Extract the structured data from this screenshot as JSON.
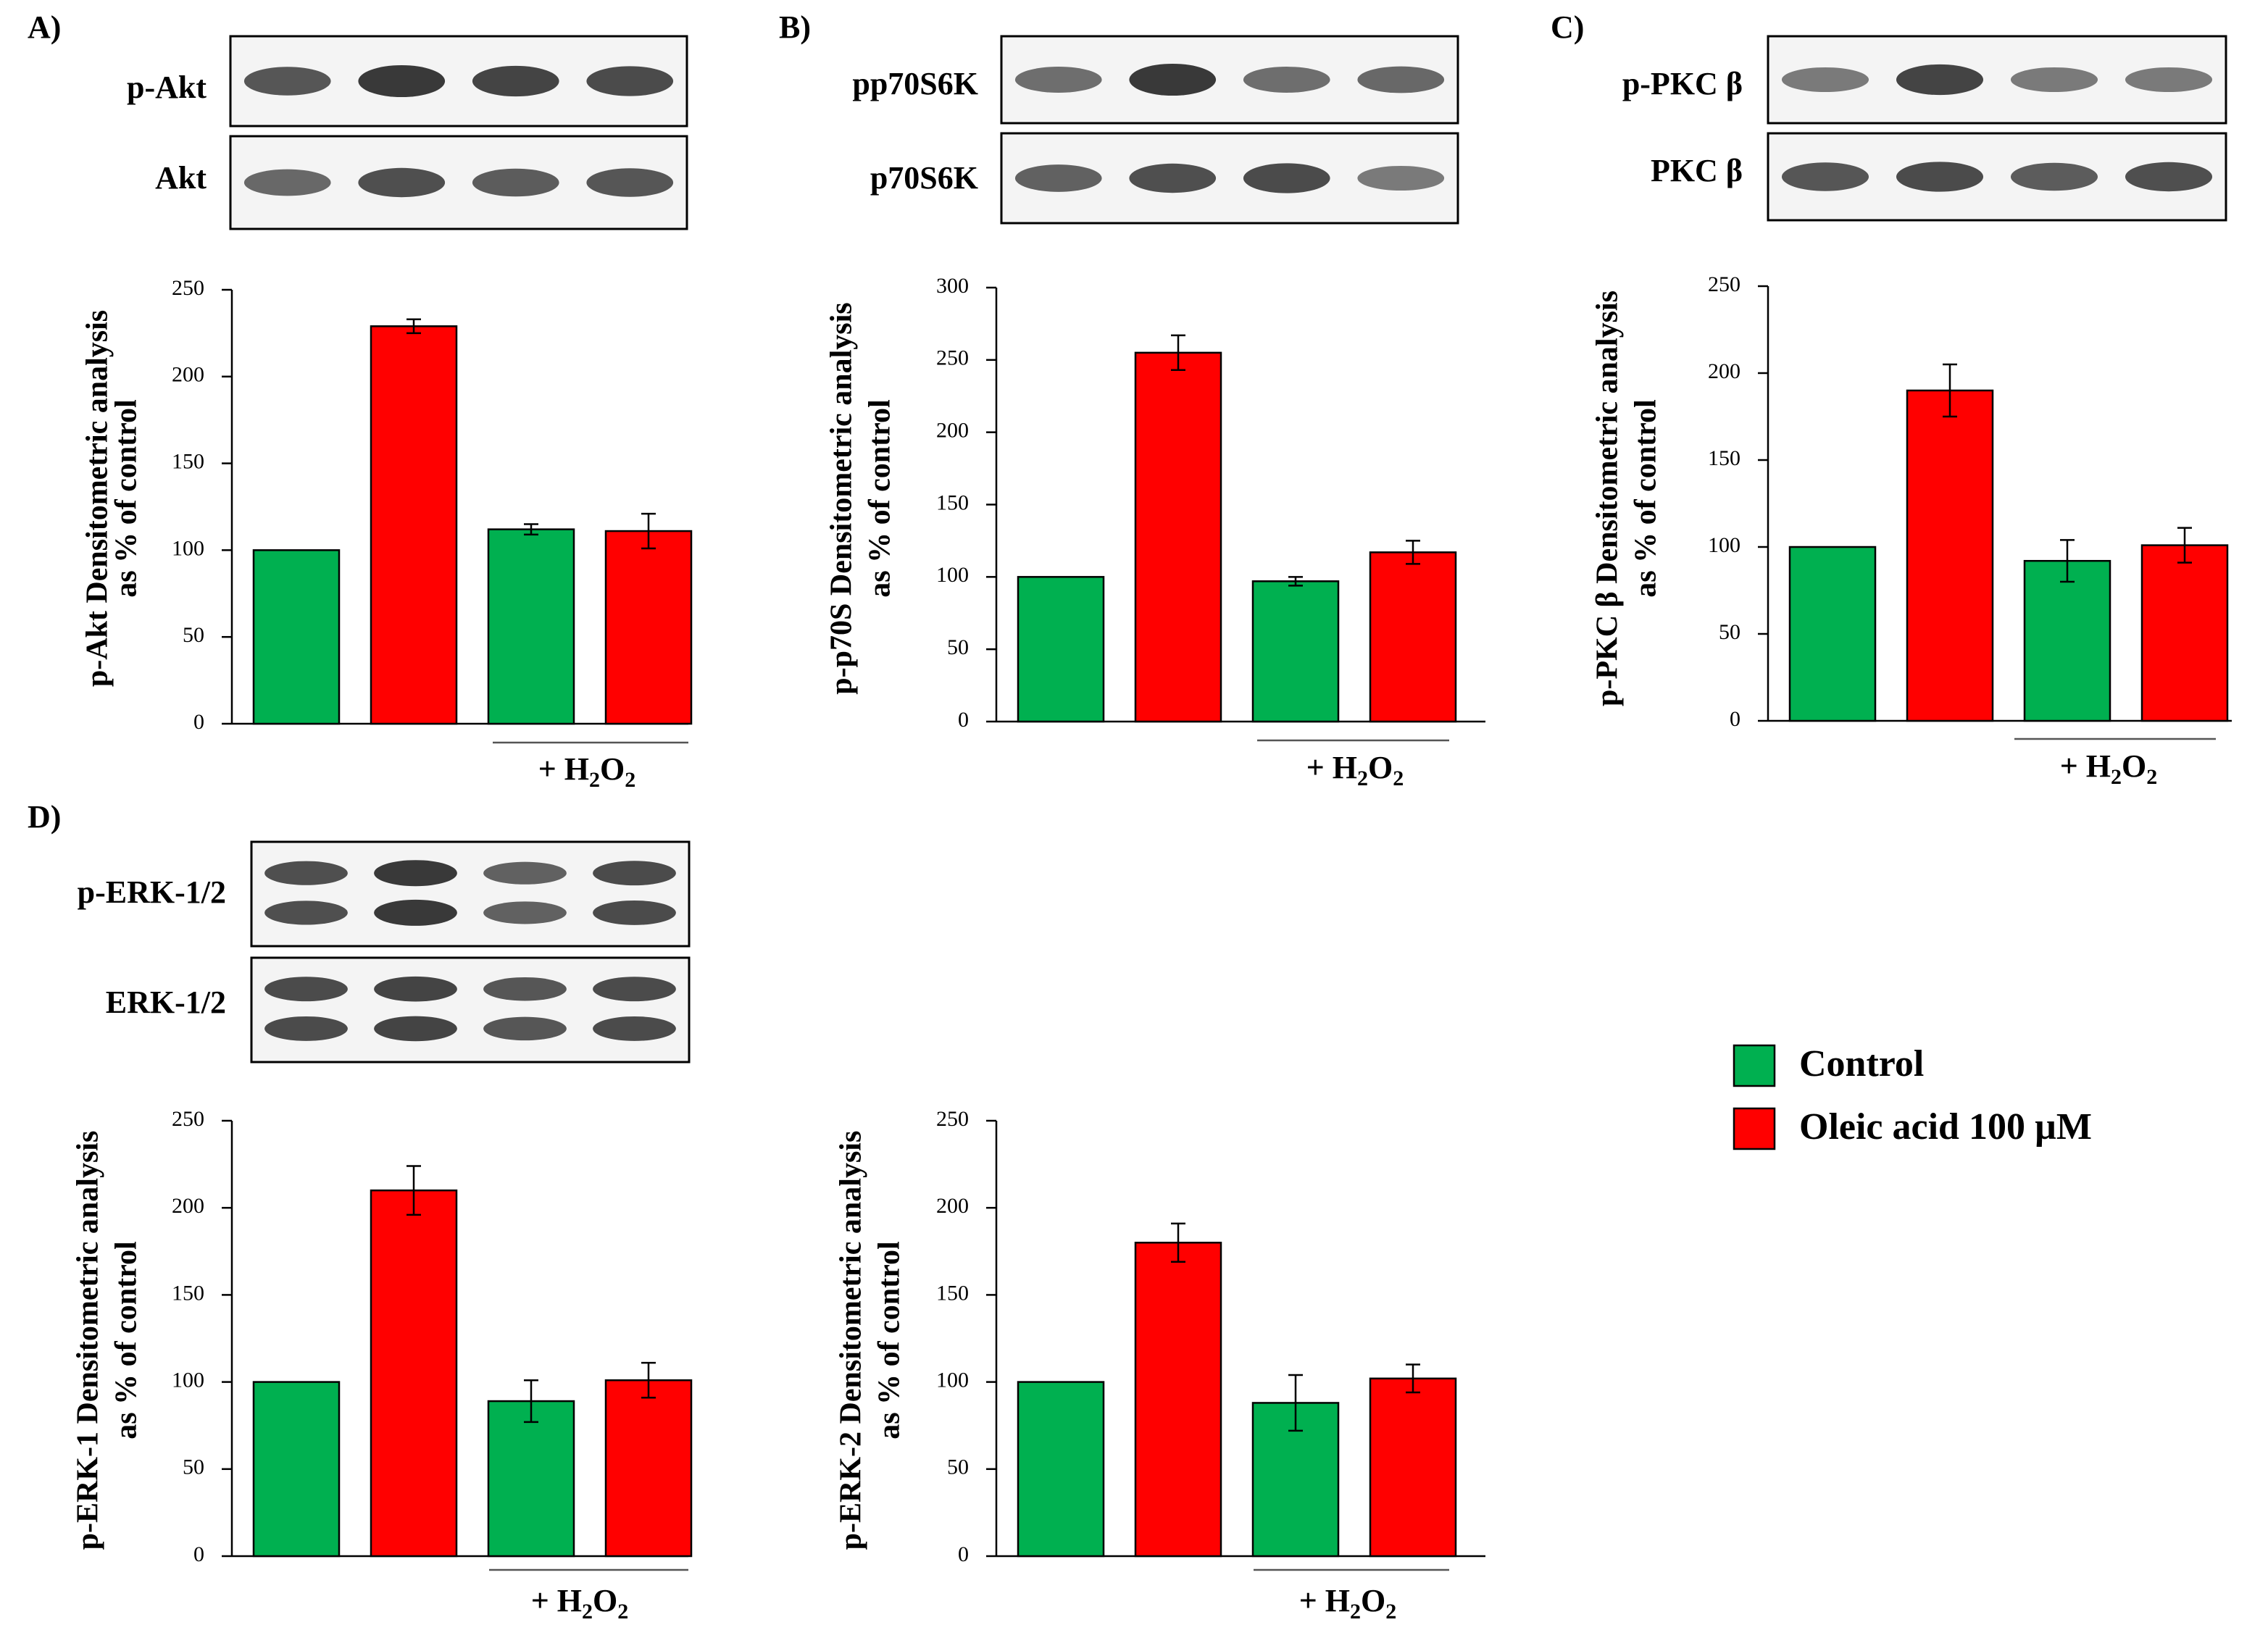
{
  "colors": {
    "control": "#00b050",
    "oleic": "#ff0000",
    "axis": "#000000",
    "blot_bg": "#f4f4f4",
    "band": "#2e2e2e"
  },
  "legend": {
    "items": [
      {
        "label": "Control",
        "color": "#00b050"
      },
      {
        "label": "Oleic acid 100 µM",
        "color": "#ff0000"
      }
    ]
  },
  "treatment_label": {
    "prefix": "+ H",
    "sub1": "2",
    "mid": "O",
    "sub2": "2"
  },
  "chart_data": [
    {
      "panel": "A)",
      "type": "bar",
      "blots": [
        "p-Akt",
        "Akt"
      ],
      "ylabel_line1": "p-Akt Densitometric analysis",
      "ylabel_line2": "as % of control",
      "ylim": [
        0,
        250
      ],
      "yticks": [
        0,
        50,
        100,
        150,
        200,
        250
      ],
      "categories": [
        "Control",
        "Oleic acid 100 µM",
        "Control + H2O2",
        "Oleic acid 100 µM + H2O2"
      ],
      "values": [
        100,
        229,
        112,
        111
      ],
      "errors": [
        0,
        4,
        3,
        10
      ]
    },
    {
      "panel": "B)",
      "type": "bar",
      "blots": [
        "pp70S6K",
        "p70S6K"
      ],
      "ylabel_line1": "p-p70S Densitometric analysis",
      "ylabel_line2": "as % of control",
      "ylim": [
        0,
        300
      ],
      "yticks": [
        0,
        50,
        100,
        150,
        200,
        250,
        300
      ],
      "categories": [
        "Control",
        "Oleic acid 100 µM",
        "Control + H2O2",
        "Oleic acid 100 µM + H2O2"
      ],
      "values": [
        100,
        255,
        97,
        117
      ],
      "errors": [
        0,
        12,
        3,
        8
      ]
    },
    {
      "panel": "C)",
      "type": "bar",
      "blots": [
        "p-PKC β",
        "PKC β"
      ],
      "ylabel_line1": "p-PKC β Densitometric analysis",
      "ylabel_line2": "as % of control",
      "ylim": [
        0,
        250
      ],
      "yticks": [
        0,
        50,
        100,
        150,
        200,
        250
      ],
      "categories": [
        "Control",
        "Oleic acid 100 µM",
        "Control + H2O2",
        "Oleic acid 100 µM + H2O2"
      ],
      "values": [
        100,
        190,
        92,
        101
      ],
      "errors": [
        0,
        15,
        12,
        10
      ]
    },
    {
      "panel": "D)",
      "type": "bar",
      "blots": [
        "p-ERK-1/2",
        "ERK-1/2"
      ],
      "ylabel_line1": "p-ERK-1 Densitometric analysis",
      "ylabel_line2": "as % of control",
      "ylim": [
        0,
        250
      ],
      "yticks": [
        0,
        50,
        100,
        150,
        200,
        250
      ],
      "categories": [
        "Control",
        "Oleic acid 100 µM",
        "Control + H2O2",
        "Oleic acid 100 µM + H2O2"
      ],
      "values": [
        100,
        210,
        89,
        101
      ],
      "errors": [
        0,
        14,
        12,
        10
      ]
    },
    {
      "panel": "",
      "type": "bar",
      "blots": [],
      "ylabel_line1": "p-ERK-2 Densitometric analysis",
      "ylabel_line2": "as % of control",
      "ylim": [
        0,
        250
      ],
      "yticks": [
        0,
        50,
        100,
        150,
        200,
        250
      ],
      "categories": [
        "Control",
        "Oleic acid 100 µM",
        "Control + H2O2",
        "Oleic acid 100 µM + H2O2"
      ],
      "values": [
        100,
        180,
        88,
        102
      ],
      "errors": [
        0,
        11,
        16,
        8
      ]
    }
  ]
}
